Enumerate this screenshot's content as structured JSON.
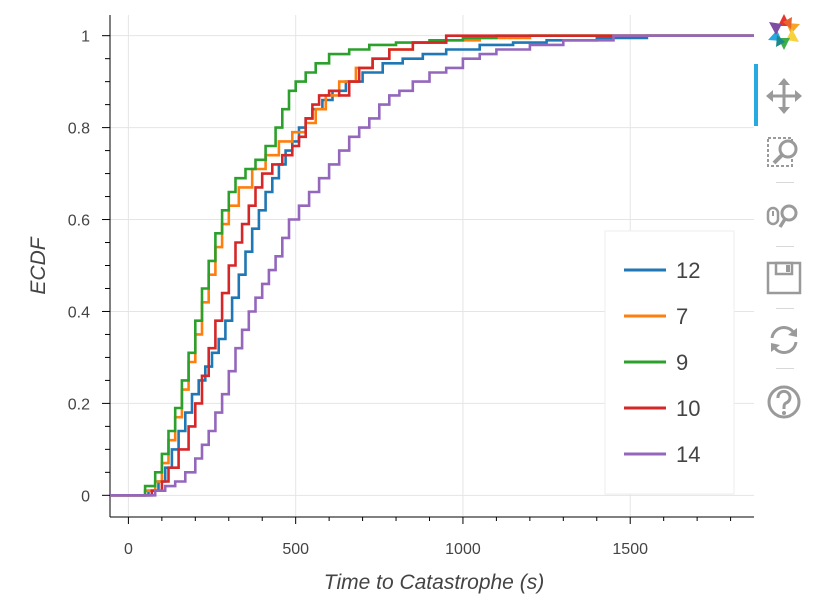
{
  "chart_data": {
    "type": "line",
    "title": "",
    "xlabel": "Time to Catastrophe (s)",
    "ylabel": "ECDF",
    "xlim": [
      -55,
      1870
    ],
    "ylim": [
      -0.045,
      1.045
    ],
    "x_ticks": [
      0,
      500,
      1000,
      1500
    ],
    "x_tick_labels": [
      "0",
      "500",
      "1000",
      "1500"
    ],
    "y_ticks": [
      0,
      0.2,
      0.4,
      0.6,
      0.8,
      1
    ],
    "y_tick_labels": [
      "0",
      "0.2",
      "0.4",
      "0.6",
      "0.8",
      "1"
    ],
    "grid": true,
    "legend_position": "right",
    "series": [
      {
        "name": "12",
        "color": "#1f77b4",
        "points": [
          [
            -55,
            0
          ],
          [
            40,
            0
          ],
          [
            60,
            0.01
          ],
          [
            90,
            0.03
          ],
          [
            110,
            0.06
          ],
          [
            130,
            0.1
          ],
          [
            150,
            0.14
          ],
          [
            170,
            0.18
          ],
          [
            190,
            0.22
          ],
          [
            210,
            0.25
          ],
          [
            230,
            0.28
          ],
          [
            250,
            0.31
          ],
          [
            270,
            0.34
          ],
          [
            290,
            0.38
          ],
          [
            310,
            0.43
          ],
          [
            330,
            0.48
          ],
          [
            350,
            0.53
          ],
          [
            370,
            0.58
          ],
          [
            390,
            0.62
          ],
          [
            410,
            0.66
          ],
          [
            430,
            0.69
          ],
          [
            450,
            0.72
          ],
          [
            470,
            0.75
          ],
          [
            490,
            0.77
          ],
          [
            510,
            0.8
          ],
          [
            530,
            0.82
          ],
          [
            550,
            0.84
          ],
          [
            580,
            0.86
          ],
          [
            610,
            0.88
          ],
          [
            650,
            0.9
          ],
          [
            700,
            0.92
          ],
          [
            760,
            0.94
          ],
          [
            820,
            0.95
          ],
          [
            880,
            0.96
          ],
          [
            950,
            0.97
          ],
          [
            1050,
            0.98
          ],
          [
            1150,
            0.985
          ],
          [
            1250,
            0.99
          ],
          [
            1400,
            0.995
          ],
          [
            1550,
            1
          ],
          [
            1870,
            1
          ]
        ]
      },
      {
        "name": "7",
        "color": "#ff7f0e",
        "points": [
          [
            -55,
            0
          ],
          [
            40,
            0
          ],
          [
            50,
            0.01
          ],
          [
            80,
            0.03
          ],
          [
            100,
            0.07
          ],
          [
            120,
            0.12
          ],
          [
            140,
            0.17
          ],
          [
            160,
            0.23
          ],
          [
            180,
            0.29
          ],
          [
            200,
            0.35
          ],
          [
            220,
            0.42
          ],
          [
            240,
            0.48
          ],
          [
            260,
            0.54
          ],
          [
            280,
            0.59
          ],
          [
            300,
            0.63
          ],
          [
            330,
            0.67
          ],
          [
            370,
            0.71
          ],
          [
            410,
            0.74
          ],
          [
            450,
            0.77
          ],
          [
            490,
            0.79
          ],
          [
            530,
            0.81
          ],
          [
            560,
            0.84
          ],
          [
            590,
            0.87
          ],
          [
            630,
            0.9
          ],
          [
            680,
            0.93
          ],
          [
            730,
            0.95
          ],
          [
            780,
            0.97
          ],
          [
            850,
            0.985
          ],
          [
            950,
            0.99
          ],
          [
            1050,
            0.995
          ],
          [
            1200,
            1
          ],
          [
            1870,
            1
          ]
        ]
      },
      {
        "name": "9",
        "color": "#2ca02c",
        "points": [
          [
            -55,
            0
          ],
          [
            30,
            0
          ],
          [
            50,
            0.02
          ],
          [
            80,
            0.05
          ],
          [
            100,
            0.09
          ],
          [
            120,
            0.14
          ],
          [
            140,
            0.19
          ],
          [
            160,
            0.25
          ],
          [
            180,
            0.31
          ],
          [
            200,
            0.38
          ],
          [
            220,
            0.45
          ],
          [
            240,
            0.51
          ],
          [
            260,
            0.57
          ],
          [
            280,
            0.62
          ],
          [
            300,
            0.66
          ],
          [
            320,
            0.69
          ],
          [
            350,
            0.71
          ],
          [
            380,
            0.73
          ],
          [
            410,
            0.76
          ],
          [
            440,
            0.8
          ],
          [
            460,
            0.84
          ],
          [
            480,
            0.88
          ],
          [
            500,
            0.9
          ],
          [
            530,
            0.92
          ],
          [
            560,
            0.94
          ],
          [
            600,
            0.96
          ],
          [
            660,
            0.97
          ],
          [
            720,
            0.98
          ],
          [
            800,
            0.985
          ],
          [
            900,
            0.99
          ],
          [
            1000,
            0.995
          ],
          [
            1100,
            1
          ],
          [
            1870,
            1
          ]
        ]
      },
      {
        "name": "10",
        "color": "#d62728",
        "points": [
          [
            -55,
            0
          ],
          [
            50,
            0
          ],
          [
            70,
            0.01
          ],
          [
            100,
            0.03
          ],
          [
            120,
            0.06
          ],
          [
            150,
            0.1
          ],
          [
            180,
            0.15
          ],
          [
            200,
            0.2
          ],
          [
            220,
            0.26
          ],
          [
            240,
            0.32
          ],
          [
            260,
            0.38
          ],
          [
            280,
            0.44
          ],
          [
            300,
            0.5
          ],
          [
            320,
            0.55
          ],
          [
            340,
            0.59
          ],
          [
            360,
            0.63
          ],
          [
            380,
            0.67
          ],
          [
            400,
            0.7
          ],
          [
            430,
            0.72
          ],
          [
            460,
            0.74
          ],
          [
            490,
            0.76
          ],
          [
            510,
            0.78
          ],
          [
            530,
            0.82
          ],
          [
            550,
            0.85
          ],
          [
            570,
            0.87
          ],
          [
            600,
            0.88
          ],
          [
            630,
            0.87
          ],
          [
            660,
            0.9
          ],
          [
            690,
            0.93
          ],
          [
            730,
            0.95
          ],
          [
            780,
            0.97
          ],
          [
            850,
            0.985
          ],
          [
            950,
            1
          ],
          [
            1870,
            1
          ]
        ]
      },
      {
        "name": "14",
        "color": "#9467bd",
        "points": [
          [
            -55,
            0
          ],
          [
            60,
            0
          ],
          [
            80,
            0.01
          ],
          [
            110,
            0.02
          ],
          [
            140,
            0.03
          ],
          [
            170,
            0.05
          ],
          [
            200,
            0.08
          ],
          [
            220,
            0.11
          ],
          [
            240,
            0.14
          ],
          [
            260,
            0.18
          ],
          [
            280,
            0.22
          ],
          [
            300,
            0.27
          ],
          [
            320,
            0.32
          ],
          [
            340,
            0.36
          ],
          [
            360,
            0.4
          ],
          [
            380,
            0.43
          ],
          [
            400,
            0.46
          ],
          [
            420,
            0.49
          ],
          [
            440,
            0.52
          ],
          [
            460,
            0.56
          ],
          [
            480,
            0.6
          ],
          [
            510,
            0.63
          ],
          [
            540,
            0.66
          ],
          [
            570,
            0.69
          ],
          [
            600,
            0.72
          ],
          [
            630,
            0.75
          ],
          [
            660,
            0.78
          ],
          [
            690,
            0.8
          ],
          [
            720,
            0.82
          ],
          [
            750,
            0.85
          ],
          [
            780,
            0.87
          ],
          [
            810,
            0.88
          ],
          [
            850,
            0.9
          ],
          [
            900,
            0.92
          ],
          [
            950,
            0.93
          ],
          [
            1000,
            0.95
          ],
          [
            1050,
            0.96
          ],
          [
            1100,
            0.97
          ],
          [
            1200,
            0.98
          ],
          [
            1300,
            0.99
          ],
          [
            1450,
            1
          ],
          [
            1870,
            1
          ]
        ]
      }
    ]
  },
  "toolbar": {
    "tools": [
      {
        "name": "bokeh-logo",
        "icon": "bokeh-logo-icon",
        "active": false
      },
      {
        "name": "pan-tool",
        "icon": "pan-icon",
        "active": true
      },
      {
        "name": "box-zoom-tool",
        "icon": "box-zoom-icon",
        "active": false
      },
      {
        "name": "wheel-zoom-tool",
        "icon": "wheel-zoom-icon",
        "active": false
      },
      {
        "name": "save-tool",
        "icon": "save-icon",
        "active": false
      },
      {
        "name": "reset-tool",
        "icon": "reset-icon",
        "active": false
      },
      {
        "name": "help-tool",
        "icon": "help-icon",
        "active": false
      }
    ],
    "accent_color": "#26aae1"
  }
}
